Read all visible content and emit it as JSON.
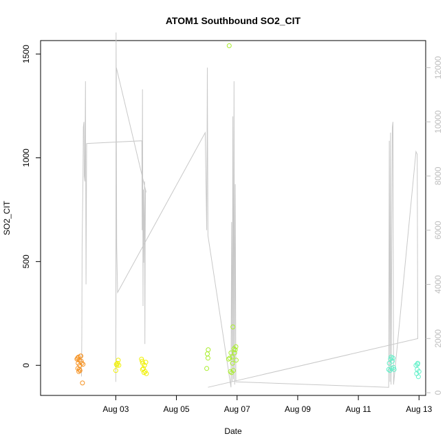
{
  "chart_data": {
    "type": "scatter",
    "title": "ATOM1 Southbound SO2_CIT",
    "xlabel": "Date",
    "ylabel": "SO2_CIT",
    "xlim": [
      0.52,
      13.22
    ],
    "ylim": [
      -145,
      1565
    ],
    "y2lim": [
      -100,
      13000
    ],
    "x_ticks": [
      {
        "value": 3,
        "label": "Aug 03"
      },
      {
        "value": 5,
        "label": "Aug 05"
      },
      {
        "value": 7,
        "label": "Aug 07"
      },
      {
        "value": 9,
        "label": "Aug 09"
      },
      {
        "value": 11,
        "label": "Aug 11"
      },
      {
        "value": 13,
        "label": "Aug 13"
      }
    ],
    "y_ticks": [
      0,
      500,
      1000,
      1500
    ],
    "y2_ticks": [
      0,
      2000,
      4000,
      6000,
      8000,
      10000,
      12000
    ],
    "secondary_line": {
      "color": "#c8c8c8",
      "points": [
        [
          1.87,
          600
        ],
        [
          1.88,
          2200
        ],
        [
          1.89,
          5400
        ],
        [
          1.91,
          7200
        ],
        [
          1.92,
          8000
        ],
        [
          1.93,
          9800
        ],
        [
          1.95,
          10000
        ],
        [
          1.96,
          8000
        ],
        [
          1.98,
          7800
        ],
        [
          2.0,
          11500
        ],
        [
          2.02,
          4000
        ],
        [
          2.04,
          9200
        ],
        [
          2.06,
          9200
        ],
        [
          3.6,
          9250
        ],
        [
          3.85,
          9300
        ],
        [
          3.86,
          8400
        ],
        [
          3.87,
          6000
        ],
        [
          3.88,
          11200
        ],
        [
          3.9,
          3200
        ],
        [
          3.91,
          7500
        ],
        [
          3.92,
          4800
        ],
        [
          3.95,
          7800
        ],
        [
          3.96,
          1800
        ],
        [
          3.97,
          5600
        ],
        [
          3.98,
          7500
        ],
        [
          4.0,
          7400
        ],
        [
          3.02,
          12000
        ],
        [
          3.04,
          5300
        ],
        [
          3.05,
          13300
        ],
        [
          3.06,
          4000
        ],
        [
          3.1,
          3700
        ],
        [
          5.95,
          9600
        ],
        [
          6.0,
          6000
        ],
        [
          6.02,
          12000
        ],
        [
          6.04,
          5800
        ],
        [
          6.8,
          200
        ],
        [
          6.82,
          6300
        ],
        [
          6.84,
          400
        ],
        [
          6.86,
          10200
        ],
        [
          6.88,
          500
        ],
        [
          6.9,
          11500
        ],
        [
          6.92,
          300
        ],
        [
          6.94,
          7700
        ],
        [
          6.96,
          400
        ]
      ]
    },
    "secondary_line_order": [
      [
        1.87,
        600
      ],
      [
        1.88,
        2200
      ],
      [
        1.89,
        5400
      ],
      [
        1.91,
        7200
      ],
      [
        1.92,
        8000
      ],
      [
        1.93,
        9800
      ],
      [
        1.95,
        10000
      ],
      [
        1.96,
        8000
      ],
      [
        1.98,
        7800
      ],
      [
        2.0,
        11500
      ],
      [
        2.02,
        4000
      ],
      [
        2.04,
        9200
      ],
      [
        3.86,
        9300
      ],
      [
        3.87,
        6000
      ],
      [
        3.88,
        11200
      ],
      [
        3.9,
        3200
      ],
      [
        3.91,
        7500
      ],
      [
        3.92,
        4800
      ],
      [
        3.95,
        7800
      ],
      [
        3.96,
        1800
      ],
      [
        3.97,
        5600
      ],
      [
        3.98,
        7500
      ],
      [
        4.0,
        7400
      ],
      [
        3.02,
        12000
      ],
      [
        3.0,
        400
      ],
      [
        3.01,
        13300
      ],
      [
        3.03,
        5400
      ],
      [
        3.06,
        3700
      ],
      [
        5.95,
        9600
      ],
      [
        6.0,
        6000
      ],
      [
        6.02,
        12000
      ],
      [
        6.04,
        5800
      ],
      [
        6.8,
        200
      ],
      [
        6.82,
        6300
      ],
      [
        6.84,
        400
      ],
      [
        6.86,
        10200
      ],
      [
        6.88,
        500
      ],
      [
        6.9,
        11500
      ],
      [
        6.92,
        300
      ],
      [
        6.94,
        7700
      ],
      [
        6.96,
        400
      ],
      [
        12.0,
        200
      ],
      [
        12.02,
        9300
      ],
      [
        12.04,
        400
      ],
      [
        12.06,
        9600
      ],
      [
        12.08,
        300
      ],
      [
        12.12,
        9800
      ],
      [
        12.14,
        10000
      ],
      [
        12.16,
        300
      ],
      [
        12.9,
        8900
      ],
      [
        12.94,
        8800
      ],
      [
        12.96,
        2000
      ],
      [
        6.04,
        200
      ]
    ],
    "series": [
      {
        "name": "",
        "color": "#f5901e",
        "points": [
          [
            1.72,
            30
          ],
          [
            1.74,
            35
          ],
          [
            1.76,
            10
          ],
          [
            1.77,
            40
          ],
          [
            1.78,
            -30
          ],
          [
            1.8,
            -20
          ],
          [
            1.81,
            0
          ],
          [
            1.82,
            -25
          ],
          [
            1.84,
            45
          ],
          [
            1.85,
            45
          ],
          [
            1.86,
            20
          ],
          [
            1.88,
            10
          ],
          [
            1.9,
            -85
          ],
          [
            1.92,
            5
          ],
          [
            1.75,
            -15
          ],
          [
            1.79,
            25
          ]
        ]
      },
      {
        "name": "",
        "color": "#f0f000",
        "points": [
          [
            3.0,
            -25
          ],
          [
            3.02,
            5
          ],
          [
            3.04,
            0
          ],
          [
            3.06,
            10
          ],
          [
            3.08,
            25
          ],
          [
            3.1,
            0
          ],
          [
            3.85,
            30
          ],
          [
            3.87,
            20
          ],
          [
            3.89,
            10
          ],
          [
            3.91,
            -15
          ],
          [
            3.93,
            -35
          ],
          [
            3.95,
            0
          ],
          [
            3.97,
            -30
          ],
          [
            3.99,
            15
          ],
          [
            4.01,
            -40
          ],
          [
            3.88,
            -20
          ]
        ]
      },
      {
        "name": "",
        "color": "#a8ee2a",
        "points": [
          [
            6.0,
            -15
          ],
          [
            6.02,
            55
          ],
          [
            6.04,
            35
          ],
          [
            6.05,
            75
          ],
          [
            6.72,
            30
          ],
          [
            6.74,
            1540
          ],
          [
            6.76,
            35
          ],
          [
            6.78,
            -30
          ],
          [
            6.8,
            60
          ],
          [
            6.82,
            -35
          ],
          [
            6.84,
            40
          ],
          [
            6.86,
            185
          ],
          [
            6.88,
            -25
          ],
          [
            6.9,
            80
          ],
          [
            6.92,
            60
          ],
          [
            6.94,
            75
          ],
          [
            6.96,
            90
          ],
          [
            6.97,
            25
          ],
          [
            6.85,
            10
          ]
        ]
      },
      {
        "name": "",
        "color": "#5ff0c8",
        "points": [
          [
            12.0,
            -20
          ],
          [
            12.02,
            10
          ],
          [
            12.04,
            -25
          ],
          [
            12.06,
            30
          ],
          [
            12.08,
            40
          ],
          [
            12.1,
            -15
          ],
          [
            12.12,
            20
          ],
          [
            12.14,
            35
          ],
          [
            12.16,
            -10
          ],
          [
            12.18,
            -20
          ],
          [
            12.9,
            0
          ],
          [
            12.92,
            -40
          ],
          [
            12.94,
            -20
          ],
          [
            12.96,
            10
          ],
          [
            12.98,
            -55
          ],
          [
            13.0,
            -30
          ],
          [
            12.95,
            5
          ]
        ]
      }
    ]
  }
}
